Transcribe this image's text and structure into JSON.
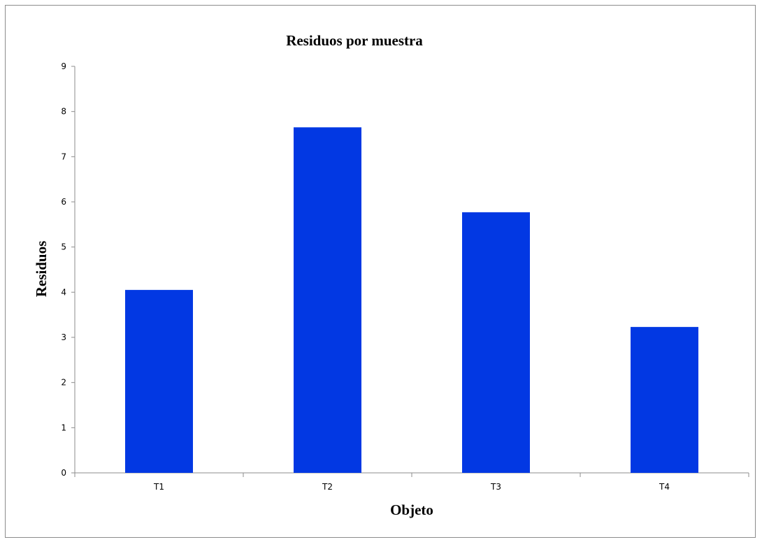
{
  "chart_data": {
    "type": "bar",
    "title": "Residuos por muestra",
    "xlabel": "Objeto",
    "ylabel": "Residuos",
    "categories": [
      "T1",
      "T2",
      "T3",
      "T4"
    ],
    "values": [
      4.05,
      7.65,
      5.77,
      3.23
    ],
    "ylim": [
      0,
      9
    ],
    "yticks": [
      "0",
      "1",
      "2",
      "3",
      "4",
      "5",
      "6",
      "7",
      "8",
      "9"
    ],
    "grid": false,
    "legend": "none",
    "bar_color": "#0238E3"
  }
}
